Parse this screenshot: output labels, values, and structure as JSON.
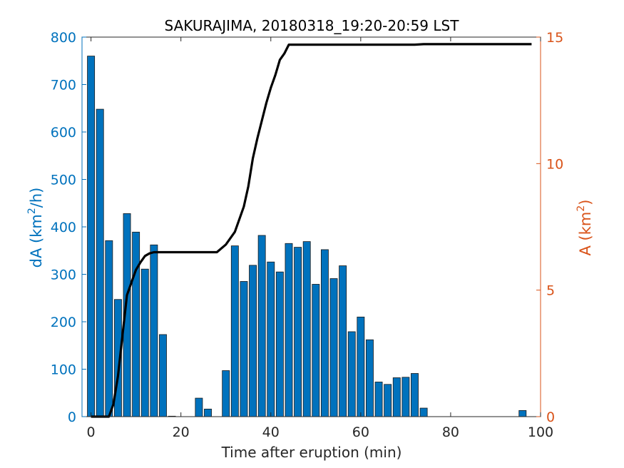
{
  "chart_data": {
    "type": "bar",
    "title": "SAKURAJIMA, 20180318_19:20-20:59 LST",
    "xlabel": "Time after eruption (min)",
    "ylabel_left_base": "dA (km",
    "ylabel_left_sup": "2",
    "ylabel_left_tail": "/h)",
    "ylabel_right_base": "A (km",
    "ylabel_right_sup": "2",
    "ylabel_right_tail": ")",
    "xlim": [
      -2,
      100
    ],
    "ylim_left": [
      0,
      800
    ],
    "ylim_right": [
      0,
      15
    ],
    "x_ticks": [
      "0",
      "20",
      "40",
      "60",
      "80",
      "100"
    ],
    "y_left_ticks": [
      "0",
      "100",
      "200",
      "300",
      "400",
      "500",
      "600",
      "700",
      "800"
    ],
    "y_right_ticks": [
      "0",
      "5",
      "10",
      "15"
    ],
    "colors": {
      "bar": "#0072BD",
      "left_axis": "#0072BD",
      "right_axis": "#D95319",
      "line": "#000000"
    },
    "series": [
      {
        "type": "bar",
        "axis": "left",
        "x": [
          0,
          2,
          4,
          6,
          8,
          10,
          12,
          14,
          16,
          18,
          20,
          22,
          24,
          26,
          28,
          30,
          32,
          34,
          36,
          38,
          40,
          42,
          44,
          46,
          48,
          50,
          52,
          54,
          56,
          58,
          60,
          62,
          64,
          66,
          68,
          70,
          72,
          74,
          76,
          78,
          80,
          82,
          84,
          86,
          88,
          90,
          92,
          94,
          96
        ],
        "values": [
          760,
          648,
          371,
          247,
          428,
          389,
          311,
          362,
          173,
          1,
          0,
          0,
          39,
          16,
          0,
          97,
          360,
          285,
          319,
          382,
          326,
          305,
          365,
          357,
          369,
          279,
          352,
          291,
          318,
          179,
          210,
          162,
          73,
          68,
          82,
          83,
          91,
          18,
          0,
          0,
          0,
          0,
          0,
          0,
          0,
          0,
          0,
          0,
          13
        ]
      },
      {
        "type": "line",
        "axis": "right",
        "x": [
          0,
          2,
          4,
          5,
          6,
          7,
          8,
          9,
          10,
          11,
          12,
          13,
          14,
          16,
          18,
          20,
          22,
          24,
          26,
          28,
          30,
          32,
          34,
          35,
          36,
          37,
          38,
          39,
          40,
          41,
          42,
          43,
          44,
          46,
          48,
          50,
          52,
          54,
          56,
          58,
          60,
          62,
          64,
          66,
          68,
          70,
          72,
          74,
          76,
          78,
          80,
          82,
          84,
          86,
          88,
          90,
          92,
          94,
          96,
          98
        ],
        "values": [
          0,
          0,
          0,
          0.5,
          1.6,
          3.2,
          4.8,
          5.3,
          5.8,
          6.1,
          6.35,
          6.45,
          6.5,
          6.5,
          6.5,
          6.5,
          6.5,
          6.5,
          6.5,
          6.5,
          6.8,
          7.3,
          8.3,
          9.1,
          10.2,
          11.0,
          11.7,
          12.4,
          13.0,
          13.5,
          14.1,
          14.35,
          14.7,
          14.7,
          14.7,
          14.7,
          14.7,
          14.7,
          14.7,
          14.7,
          14.7,
          14.7,
          14.7,
          14.7,
          14.7,
          14.7,
          14.7,
          14.72,
          14.72,
          14.72,
          14.72,
          14.72,
          14.72,
          14.72,
          14.72,
          14.72,
          14.72,
          14.72,
          14.72,
          14.72
        ]
      }
    ]
  }
}
